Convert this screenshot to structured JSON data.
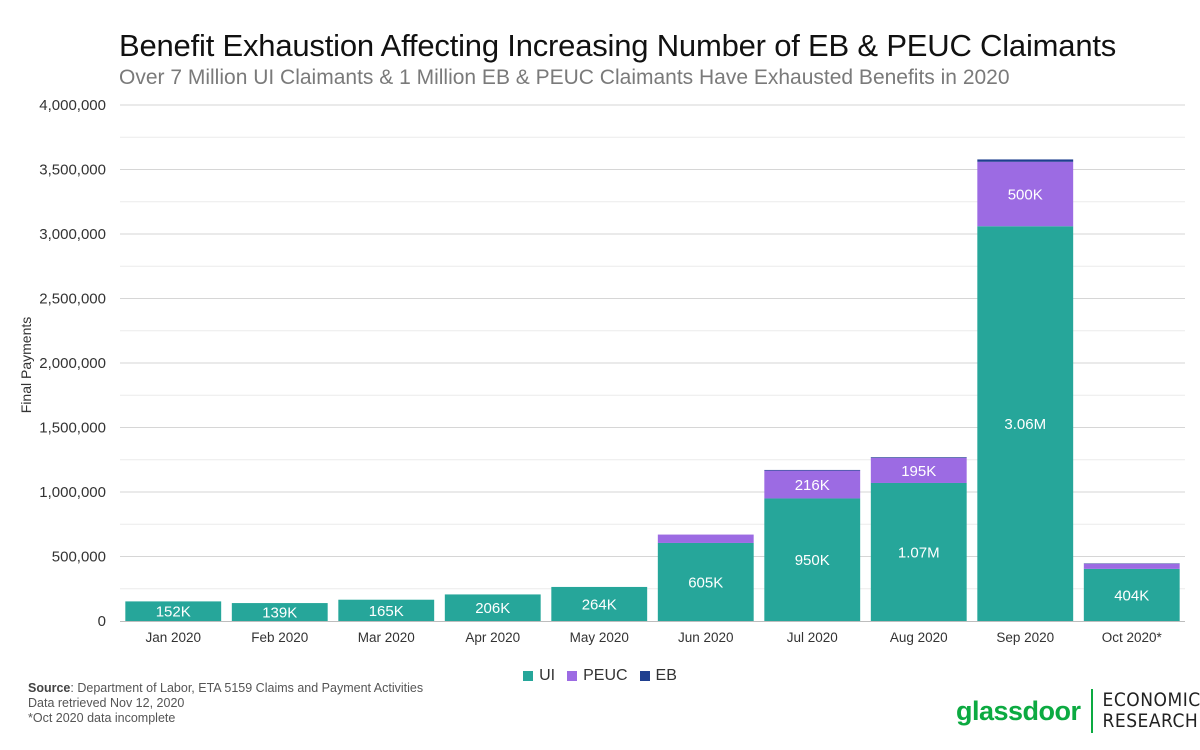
{
  "chart_data": {
    "type": "bar",
    "stacked": true,
    "title": "Benefit Exhaustion Affecting Increasing Number of EB & PEUC Claimants",
    "subtitle": "Over 7 Million UI Claimants & 1 Million EB & PEUC Claimants Have Exhausted Benefits in 2020",
    "ylabel": "Final Payments",
    "xlabel": "",
    "ylim": [
      0,
      4000000
    ],
    "yticks": [
      0,
      500000,
      1000000,
      1500000,
      2000000,
      2500000,
      3000000,
      3500000,
      4000000
    ],
    "ytick_labels": [
      "0",
      "500,000",
      "1,000,000",
      "1,500,000",
      "2,000,000",
      "2,500,000",
      "3,000,000",
      "3,500,000",
      "4,000,000"
    ],
    "grid": true,
    "legend_position": "bottom",
    "categories": [
      "Jan 2020",
      "Feb 2020",
      "Mar 2020",
      "Apr 2020",
      "May 2020",
      "Jun 2020",
      "Jul 2020",
      "Aug 2020",
      "Sep 2020",
      "Oct 2020*"
    ],
    "series": [
      {
        "name": "UI",
        "color": "#26a69a",
        "values": [
          152000,
          139000,
          165000,
          206000,
          264000,
          605000,
          950000,
          1070000,
          3060000,
          404000
        ],
        "labels": [
          "152K",
          "139K",
          "165K",
          "206K",
          "264K",
          "605K",
          "950K",
          "1.07M",
          "3.06M",
          "404K"
        ]
      },
      {
        "name": "PEUC",
        "color": "#9c6be3",
        "values": [
          0,
          0,
          0,
          0,
          0,
          65000,
          216000,
          195000,
          500000,
          40000
        ],
        "labels": [
          "",
          "",
          "",
          "",
          "",
          "",
          "216K",
          "195K",
          "500K",
          ""
        ]
      },
      {
        "name": "EB",
        "color": "#1f3f8f",
        "values": [
          0,
          0,
          0,
          0,
          0,
          0,
          5000,
          5000,
          18000,
          3000
        ],
        "labels": [
          "",
          "",
          "",
          "",
          "",
          "",
          "",
          "",
          "",
          ""
        ]
      }
    ]
  },
  "footer": {
    "source_label": "Source",
    "source_text": ": Department of Labor, ETA 5159 Claims and Payment Activities",
    "retrieved": "Data retrieved Nov 12, 2020",
    "note": "*Oct 2020 data incomplete"
  },
  "brand": {
    "name": "glassdoor",
    "sub_line1": "ECONOMIC",
    "sub_line2": "RESEARCH",
    "color": "#0caa41"
  }
}
